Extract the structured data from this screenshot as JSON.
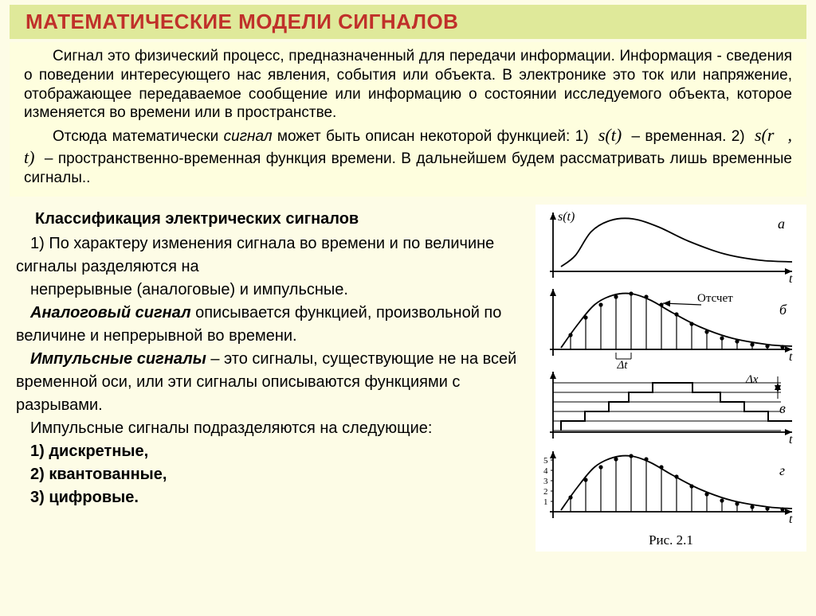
{
  "title": "МАТЕМАТИЧЕСКИЕ МОДЕЛИ СИГНАЛОВ",
  "intro": {
    "p1": "Сигнал это физический процесс, предназначенный для передачи информации. Информация - сведения о поведении интересующего нас явления, события или объекта.  В электронике это ток или напряжение, отображающее передаваемое сообщение или информацию о состоянии исследуемого объекта, которое изменяется во времени или в пространстве.",
    "p2_a": "Отсюда математически ",
    "p2_sig": "сигнал",
    "p2_b": " может быть описан некоторой функцией: 1) ",
    "formula1": "s(t)",
    "p2_c": " – временная.    2)  ",
    "formula2": "s(r⃗, t)",
    "p2_d": "  – пространственно-временная функция времени. В дальнейшем будем рассматривать лишь временные сигналы.."
  },
  "class": {
    "header": "Классификация электрических сигналов",
    "p1": "1) По характеру изменения сигнала во времени и по величине сигналы разделяются на",
    "p2": "непрерывные (аналоговые) и импульсные.",
    "p3a": "Аналоговый сигнал",
    "p3b": " описывается функцией, произвольной по величине и непрерывной во времени.",
    "p4a": "Импульсные сигналы",
    "p4b": " – это сигналы, существующие не на всей временной оси, или эти сигналы описываются функциями с разрывами.",
    "p5": "Импульсные сигналы подразделяются на следующие:",
    "li1": "1) дискретные,",
    "li2": "2) квантованные,",
    "li3": "3) цифровые"
  },
  "figure": {
    "caption": "Рис. 2.1",
    "axis_color": "#000000",
    "curve_color": "#000000",
    "bg": "#ffffff",
    "stroke_width": 1.8,
    "panels": {
      "a": {
        "label": "а",
        "ylabel": "s(t)",
        "xlabel": "t",
        "curve": [
          [
            10,
            72
          ],
          [
            28,
            58
          ],
          [
            48,
            28
          ],
          [
            72,
            14
          ],
          [
            100,
            12
          ],
          [
            132,
            22
          ],
          [
            170,
            40
          ],
          [
            215,
            56
          ],
          [
            260,
            64
          ],
          [
            300,
            66
          ]
        ]
      },
      "b": {
        "label": "б",
        "xlabel": "t",
        "annot": "Отсчет",
        "dt": "Δt",
        "curve": [
          [
            10,
            78
          ],
          [
            30,
            50
          ],
          [
            52,
            24
          ],
          [
            75,
            12
          ],
          [
            98,
            10
          ],
          [
            122,
            18
          ],
          [
            150,
            34
          ],
          [
            185,
            52
          ],
          [
            225,
            66
          ],
          [
            270,
            74
          ],
          [
            300,
            76
          ]
        ],
        "sample_x": [
          22,
          41,
          60,
          79,
          98,
          117,
          136,
          155,
          174,
          193,
          212,
          231,
          250,
          269,
          288
        ],
        "sample_y": [
          62,
          40,
          24,
          14,
          10,
          14,
          24,
          36,
          48,
          58,
          66,
          70,
          74,
          76,
          77
        ]
      },
      "c": {
        "label": "в",
        "xlabel": "t",
        "dx": "Δx",
        "levels": [
          78,
          66,
          54,
          42,
          30,
          18
        ],
        "steps": [
          [
            10,
            78
          ],
          [
            10,
            66
          ],
          [
            40,
            66
          ],
          [
            40,
            54
          ],
          [
            70,
            54
          ],
          [
            70,
            42
          ],
          [
            95,
            42
          ],
          [
            95,
            30
          ],
          [
            125,
            30
          ],
          [
            125,
            18
          ],
          [
            175,
            18
          ],
          [
            175,
            30
          ],
          [
            210,
            30
          ],
          [
            210,
            42
          ],
          [
            240,
            42
          ],
          [
            240,
            54
          ],
          [
            270,
            54
          ],
          [
            270,
            66
          ],
          [
            300,
            66
          ]
        ]
      },
      "d": {
        "label": "г",
        "xlabel": "t",
        "yticks": [
          "1",
          "2",
          "3",
          "4",
          "5"
        ],
        "curve": [
          [
            10,
            78
          ],
          [
            30,
            50
          ],
          [
            52,
            24
          ],
          [
            75,
            12
          ],
          [
            98,
            10
          ],
          [
            122,
            18
          ],
          [
            150,
            34
          ],
          [
            185,
            52
          ],
          [
            225,
            66
          ],
          [
            270,
            74
          ],
          [
            300,
            76
          ]
        ],
        "sample_x": [
          22,
          41,
          60,
          79,
          98,
          117,
          136,
          155,
          174,
          193,
          212,
          231,
          250,
          269,
          288
        ],
        "sample_y": [
          62,
          40,
          24,
          14,
          10,
          14,
          24,
          36,
          48,
          58,
          66,
          70,
          74,
          76,
          77
        ]
      }
    }
  },
  "colors": {
    "page_bg": "#fdfce6",
    "title_bg": "#dfe99a",
    "title_fg": "#c0302a",
    "intro_bg": "#fefede"
  }
}
